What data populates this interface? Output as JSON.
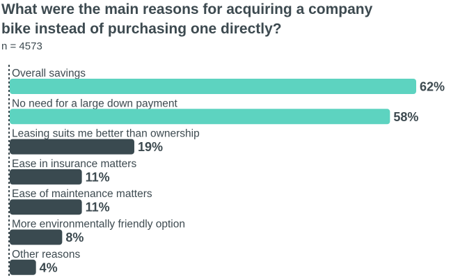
{
  "title": "What were the main reasons for acquiring a company bike instead of purchasing one directly?",
  "subtitle": "n = 4573",
  "colors": {
    "highlight": "#5dd3c0",
    "default": "#3a4a50",
    "text": "#3d4a50",
    "axis": "#3d4a50"
  },
  "chart_data": {
    "type": "bar",
    "orientation": "horizontal",
    "title": "What were the main reasons for acquiring a company bike instead of purchasing one directly?",
    "subtitle": "n = 4573",
    "categories": [
      "Overall savings",
      "No need for a large down payment",
      "Leasing suits me better than ownership",
      "Ease in insurance matters",
      "Ease of maintenance matters",
      "More environmentally friendly option",
      "Other reasons"
    ],
    "values": [
      62,
      58,
      19,
      11,
      11,
      8,
      4
    ],
    "value_labels": [
      "62%",
      "58%",
      "19%",
      "11%",
      "11%",
      "8%",
      "4%"
    ],
    "highlighted": [
      true,
      true,
      false,
      false,
      false,
      false,
      false
    ],
    "unit": "%",
    "xlim": [
      0,
      62
    ],
    "grid": false
  }
}
